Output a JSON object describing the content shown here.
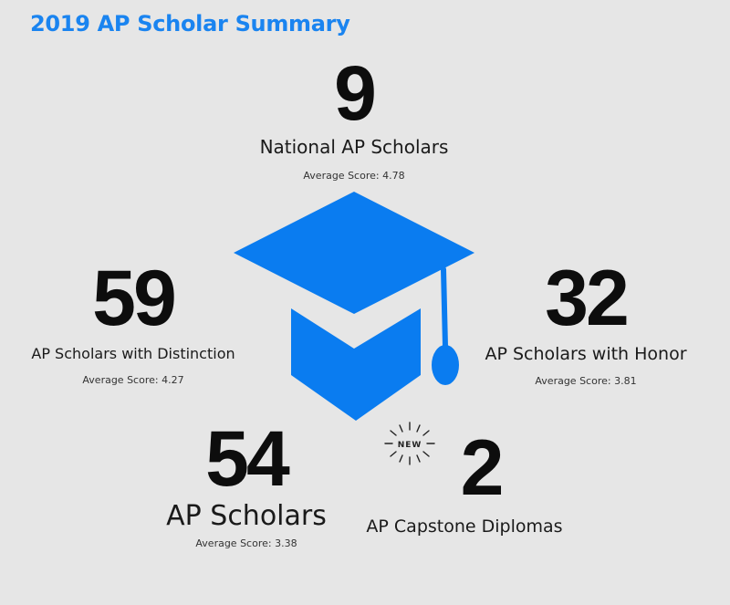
{
  "title": "2019 AP Scholar Summary",
  "colors": {
    "accent": "#1a84f0",
    "cap": "#0a7cf0",
    "background": "#e6e6e6",
    "text": "#111111"
  },
  "icons": {
    "center": "graduation-cap-icon",
    "badge": "new-burst-icon"
  },
  "stats": {
    "national": {
      "number": "9",
      "label": "National AP Scholars",
      "average": "Average Score: 4.78"
    },
    "distinction": {
      "number": "59",
      "label": "AP Scholars with Distinction",
      "average": "Average Score: 4.27"
    },
    "honor": {
      "number": "32",
      "label": "AP Scholars with Honor",
      "average": "Average Score: 3.81"
    },
    "scholars": {
      "number": "54",
      "label": "AP Scholars",
      "average": "Average Score: 3.38"
    },
    "capstone": {
      "number": "2",
      "label": "AP Capstone Diplomas",
      "badge": "NEW"
    }
  }
}
